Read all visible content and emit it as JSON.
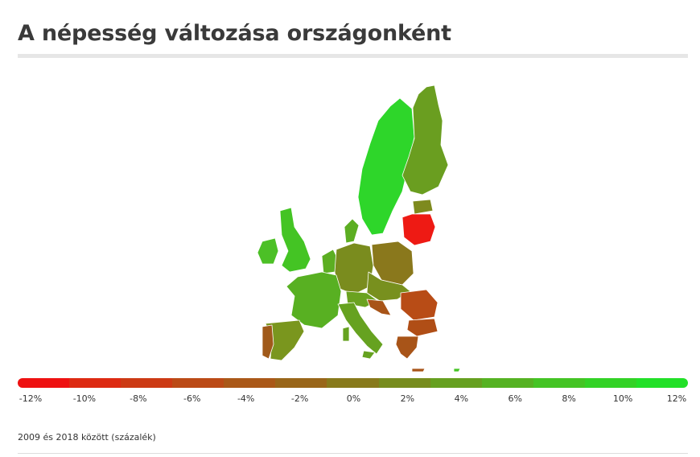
{
  "title": "A népesség változása országonként",
  "note": "2009 és 2018 között (százalék)",
  "legend": {
    "labels": [
      "-12%",
      "-10%",
      "-8%",
      "-6%",
      "-4%",
      "-2%",
      "0%",
      "2%",
      "4%",
      "6%",
      "8%",
      "10%",
      "12%"
    ],
    "colors": [
      "#ee1111",
      "#dd2a12",
      "#cc3a14",
      "#bb4a16",
      "#aa5818",
      "#99661a",
      "#887a1c",
      "#778c1e",
      "#66a020",
      "#55b222",
      "#44c424",
      "#33d226",
      "#22e028"
    ]
  },
  "colors": {
    "strong_growth": "#2ed62a",
    "growth": "#5cae22",
    "slight_growth": "#7a9a1e",
    "flat": "#8a781c",
    "slight_decline": "#a05a1a",
    "decline": "#b84c16",
    "strong_decline": "#ee1a14"
  }
}
